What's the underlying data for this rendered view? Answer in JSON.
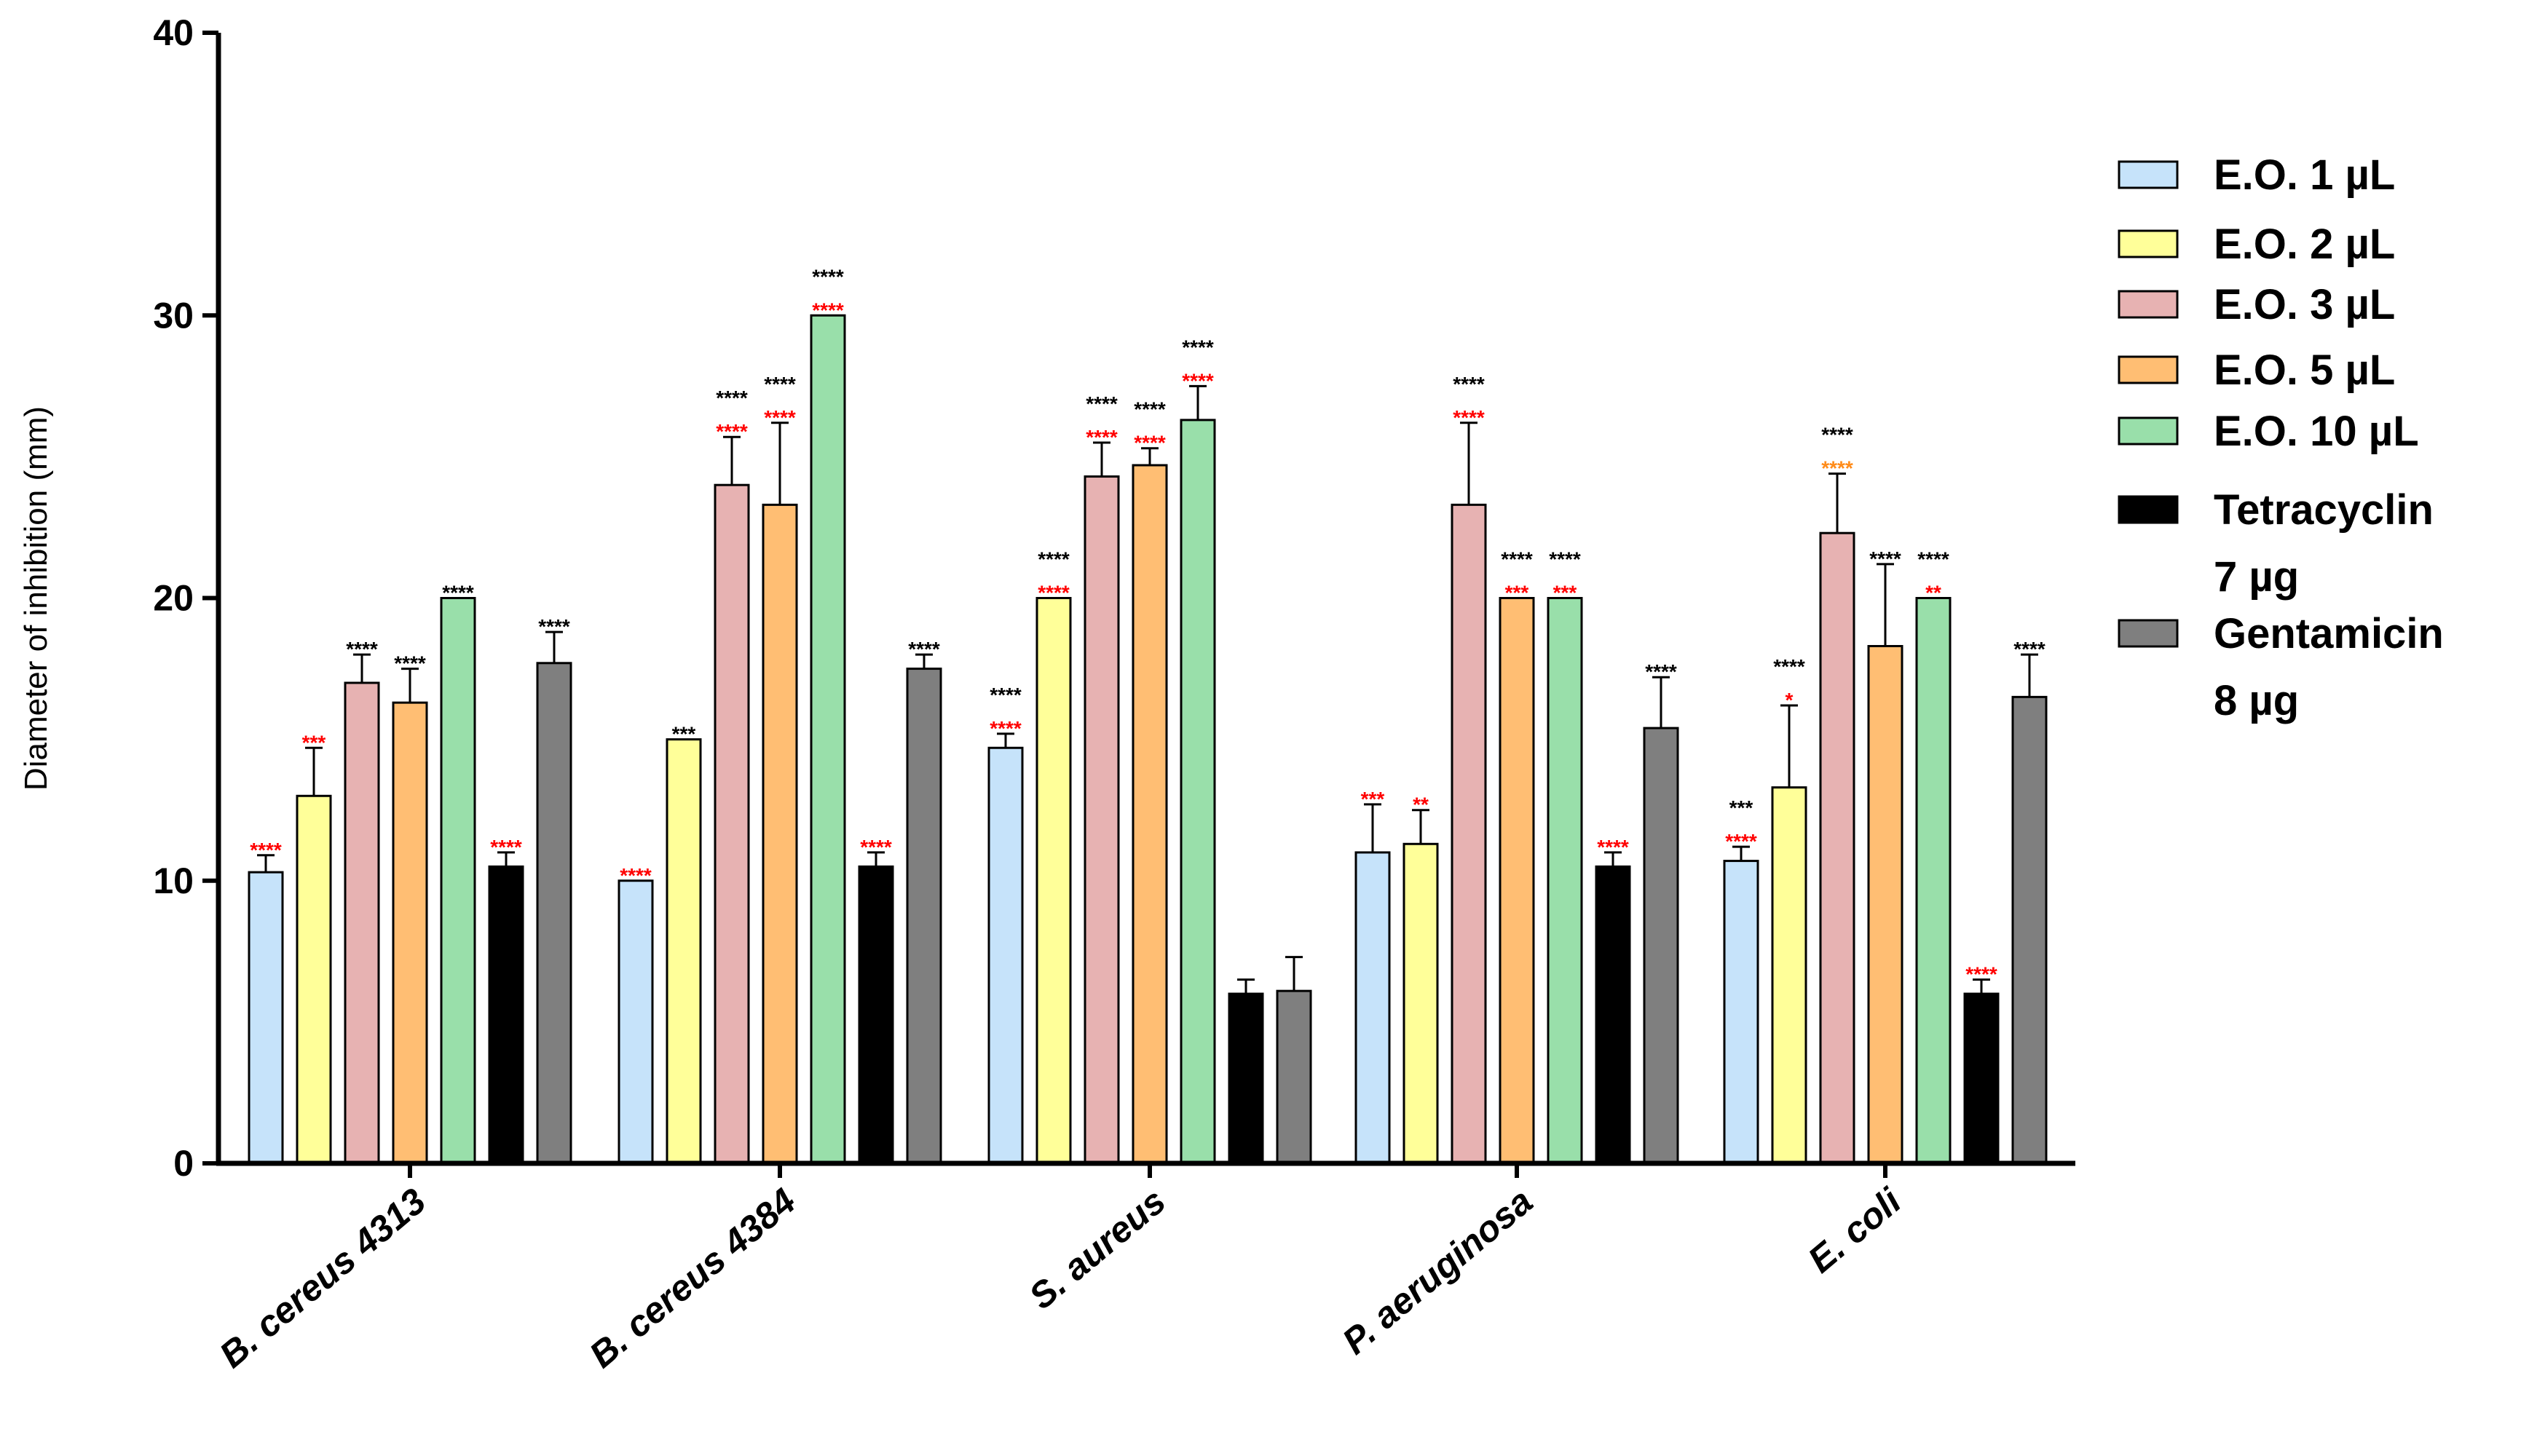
{
  "chart_data": {
    "type": "bar",
    "title": "",
    "xlabel": "",
    "ylabel": "Diameter of inhibition (mm)",
    "ylim": [
      0,
      40
    ],
    "yticks": [
      "0",
      "10",
      "20",
      "30",
      "40"
    ],
    "legend_position": "right",
    "categories": [
      "B. cereus 4313",
      "B. cereus 4384",
      "S. aureus",
      "P. aeruginosa",
      "E. coli"
    ],
    "series": [
      {
        "name": "E.O. 1 µL",
        "color": "#C6E3FA",
        "values": [
          10.3,
          10.0,
          14.7,
          11.0,
          10.7
        ],
        "errors": [
          0.6,
          0,
          0.5,
          1.7,
          0.5
        ],
        "sig": [
          [
            {
              "text": "****",
              "color": "#FF0000"
            }
          ],
          [
            {
              "text": "****",
              "color": "#FF0000"
            }
          ],
          [
            {
              "text": "****",
              "color": "#000000"
            },
            {
              "text": "****",
              "color": "#FF0000"
            }
          ],
          [
            {
              "text": "***",
              "color": "#FF0000"
            }
          ],
          [
            {
              "text": "***",
              "color": "#000000"
            },
            {
              "text": "****",
              "color": "#FF0000"
            }
          ]
        ]
      },
      {
        "name": "E.O. 2 µL",
        "color": "#FFFF99",
        "values": [
          13.0,
          15.0,
          20.0,
          11.3,
          13.3
        ],
        "errors": [
          1.7,
          0,
          0,
          1.2,
          2.9
        ],
        "sig": [
          [
            {
              "text": "***",
              "color": "#FF0000"
            }
          ],
          [
            {
              "text": "***",
              "color": "#000000"
            }
          ],
          [
            {
              "text": "****",
              "color": "#000000"
            },
            {
              "text": "****",
              "color": "#FF0000"
            }
          ],
          [
            {
              "text": "**",
              "color": "#FF0000"
            }
          ],
          [
            {
              "text": "****",
              "color": "#000000"
            },
            {
              "text": "*",
              "color": "#FF0000"
            }
          ]
        ]
      },
      {
        "name": "E.O. 3 µL",
        "color": "#E7B2B2",
        "values": [
          17.0,
          24.0,
          24.3,
          23.3,
          22.3
        ],
        "errors": [
          1.0,
          1.7,
          1.2,
          2.9,
          2.1
        ],
        "sig": [
          [
            {
              "text": "****",
              "color": "#000000"
            }
          ],
          [
            {
              "text": "****",
              "color": "#000000"
            },
            {
              "text": "****",
              "color": "#FF0000"
            }
          ],
          [
            {
              "text": "****",
              "color": "#000000"
            },
            {
              "text": "****",
              "color": "#FF0000"
            }
          ],
          [
            {
              "text": "****",
              "color": "#000000"
            },
            {
              "text": "****",
              "color": "#FF0000"
            }
          ],
          [
            {
              "text": "****",
              "color": "#000000"
            },
            {
              "text": "****",
              "color": "#FF8C1A"
            }
          ]
        ]
      },
      {
        "name": "E.O. 5 µL",
        "color": "#FFBE73",
        "values": [
          16.3,
          23.3,
          24.7,
          20.0,
          18.3
        ],
        "errors": [
          1.2,
          2.9,
          0.6,
          0,
          2.9
        ],
        "sig": [
          [
            {
              "text": "****",
              "color": "#000000"
            }
          ],
          [
            {
              "text": "****",
              "color": "#000000"
            },
            {
              "text": "****",
              "color": "#FF0000"
            }
          ],
          [
            {
              "text": "****",
              "color": "#000000"
            },
            {
              "text": "****",
              "color": "#FF0000"
            }
          ],
          [
            {
              "text": "****",
              "color": "#000000"
            },
            {
              "text": "***",
              "color": "#FF0000"
            }
          ],
          [
            {
              "text": "****",
              "color": "#000000"
            }
          ]
        ]
      },
      {
        "name": "E.O. 10 µL",
        "color": "#99DFAA",
        "values": [
          20.0,
          30.0,
          26.3,
          20.0,
          20.0
        ],
        "errors": [
          0,
          0,
          1.2,
          0,
          0
        ],
        "sig": [
          [
            {
              "text": "****",
              "color": "#000000"
            }
          ],
          [
            {
              "text": "****",
              "color": "#000000"
            },
            {
              "text": "****",
              "color": "#FF0000"
            }
          ],
          [
            {
              "text": "****",
              "color": "#000000"
            },
            {
              "text": "****",
              "color": "#FF0000"
            }
          ],
          [
            {
              "text": "****",
              "color": "#000000"
            },
            {
              "text": "***",
              "color": "#FF0000"
            }
          ],
          [
            {
              "text": "****",
              "color": "#000000"
            },
            {
              "text": "**",
              "color": "#FF0000"
            }
          ]
        ]
      },
      {
        "name": "Tetracyclin 7 µg",
        "legend_lines": [
          "Tetracyclin",
          " 7 µg"
        ],
        "color": "#000000",
        "values": [
          10.5,
          10.5,
          6.0,
          10.5,
          6.0
        ],
        "errors": [
          0.5,
          0.5,
          0.5,
          0.5,
          0.5
        ],
        "sig": [
          [
            {
              "text": "****",
              "color": "#FF0000"
            }
          ],
          [
            {
              "text": "****",
              "color": "#FF0000"
            }
          ],
          [],
          [
            {
              "text": "****",
              "color": "#FF0000"
            }
          ],
          [
            {
              "text": "****",
              "color": "#FF0000"
            }
          ]
        ]
      },
      {
        "name": "Gentamicin 8 µg",
        "legend_lines": [
          "Gentamicin",
          "8 µg"
        ],
        "color": "#7F7F7F",
        "values": [
          17.7,
          17.5,
          6.1,
          15.4,
          16.5
        ],
        "errors": [
          1.1,
          0.5,
          1.2,
          1.8,
          1.5
        ],
        "sig": [
          [
            {
              "text": "****",
              "color": "#000000"
            }
          ],
          [
            {
              "text": "****",
              "color": "#000000"
            }
          ],
          [],
          [
            {
              "text": "****",
              "color": "#000000"
            }
          ],
          [
            {
              "text": "****",
              "color": "#000000"
            }
          ]
        ]
      }
    ]
  }
}
